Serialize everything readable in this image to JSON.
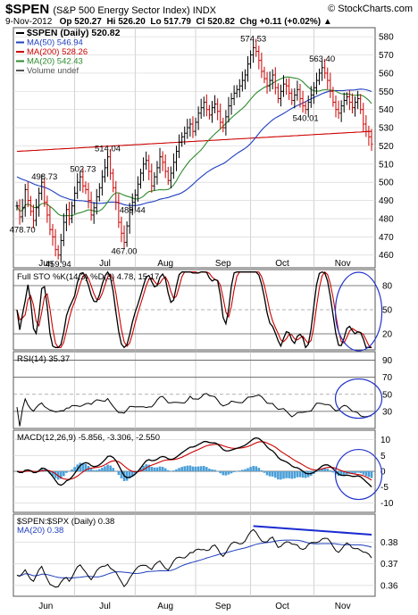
{
  "header": {
    "symbol": "$SPEN",
    "name": "(S&P 500 Energy Sector Index) INDX",
    "brand": "© StockCharts.com",
    "date": "9-Nov-2012",
    "op": "Op 520.27",
    "hi": "Hi 526.20",
    "lo": "Lo 517.79",
    "cl": "Cl 520.82",
    "chg": "Chg +0.11 (+0.02%) ▲"
  },
  "colors": {
    "up": "#000000",
    "down": "#cc0000",
    "ma50": "#1f3fbf",
    "ma200": "#cc0000",
    "ma20": "#2e8b2e",
    "sto_k": "#000000",
    "sto_d": "#cc0000",
    "macd": "#000000",
    "signal": "#cc0000",
    "hist": "#4a9fd8",
    "circle": "#2233cc",
    "trend": "#1a2bd0"
  },
  "chart_data": [
    {
      "type": "line",
      "panel": "price",
      "legend": [
        "$SPEN (Daily) 520.82",
        "MA(50) 546.94",
        "MA(200) 528.26",
        "MA(20) 542.43",
        "Volume undef"
      ],
      "months": [
        "Jun",
        "Jul",
        "Aug",
        "Sep",
        "Oct",
        "Nov"
      ],
      "yticks": [
        460,
        470,
        480,
        490,
        500,
        510,
        520,
        530,
        540,
        550,
        560,
        570,
        580
      ],
      "ylim": [
        453,
        585
      ],
      "close": [
        487,
        481,
        486,
        496,
        490,
        484,
        479,
        486,
        494,
        500,
        489,
        482,
        474,
        470,
        463,
        460,
        468,
        478,
        485,
        480,
        487,
        494,
        500,
        503,
        498,
        496,
        490,
        482,
        486,
        492,
        497,
        503,
        508,
        514,
        505,
        497,
        489,
        478,
        472,
        467,
        476,
        485,
        489,
        493,
        499,
        505,
        510,
        512,
        506,
        498,
        503,
        508,
        514,
        511,
        506,
        501,
        505,
        511,
        517,
        522,
        525,
        527,
        530,
        532,
        528,
        533,
        538,
        541,
        544,
        540,
        537,
        541,
        543,
        539,
        533,
        530,
        536,
        542,
        546,
        549,
        551,
        553,
        556,
        559,
        565,
        570,
        574,
        572,
        567,
        561,
        557,
        553,
        556,
        559,
        552,
        546,
        550,
        554,
        553,
        549,
        545,
        548,
        551,
        546,
        542,
        540,
        544,
        548,
        552,
        556,
        560,
        563,
        560,
        556,
        550,
        544,
        540,
        538,
        542,
        545,
        547,
        544,
        541,
        544,
        546,
        540,
        532,
        528,
        525,
        521
      ],
      "annotations": [
        {
          "label": "498.73",
          "idx": 10,
          "price": 498.73,
          "pos": "above"
        },
        {
          "label": "478.70",
          "idx": 2,
          "price": 478.7,
          "pos": "below"
        },
        {
          "label": "459.94",
          "idx": 15,
          "price": 459.94,
          "pos": "below"
        },
        {
          "label": "502.73",
          "idx": 24,
          "price": 502.73,
          "pos": "above"
        },
        {
          "label": "467.00",
          "idx": 39,
          "price": 467.0,
          "pos": "below"
        },
        {
          "label": "514.04",
          "idx": 33,
          "price": 514.04,
          "pos": "above"
        },
        {
          "label": "489.44",
          "idx": 42,
          "price": 489.44,
          "pos": "below"
        },
        {
          "label": "574.53",
          "idx": 86,
          "price": 574.53,
          "pos": "above"
        },
        {
          "label": "563.40",
          "idx": 111,
          "price": 563.4,
          "pos": "above"
        },
        {
          "label": "540.01",
          "idx": 105,
          "price": 540.01,
          "pos": "below"
        }
      ]
    },
    {
      "type": "line",
      "panel": "sto",
      "legend": "Full STO %K(14,3) %D(3) 4.78, 15.17",
      "yticks": [
        20,
        50,
        80
      ],
      "ylim": [
        0,
        100
      ]
    },
    {
      "type": "line",
      "panel": "rsi",
      "legend": "RSI(14) 35.37",
      "yticks": [
        30,
        50,
        70,
        90
      ],
      "ylim": [
        10,
        100
      ]
    },
    {
      "type": "line",
      "panel": "macd",
      "legend": "MACD(12,26,9) -5.856, -3.306, -2.550",
      "yticks": [
        -10,
        -5,
        0,
        5,
        10
      ],
      "ylim": [
        -13,
        13
      ]
    },
    {
      "type": "line",
      "panel": "ratio",
      "legend": [
        "$SPEN:$SPX (Daily) 0.38",
        "MA(20) 0.38"
      ],
      "yticks": [
        0.36,
        0.37,
        0.38
      ],
      "ylim": [
        0.355,
        0.393
      ]
    }
  ]
}
